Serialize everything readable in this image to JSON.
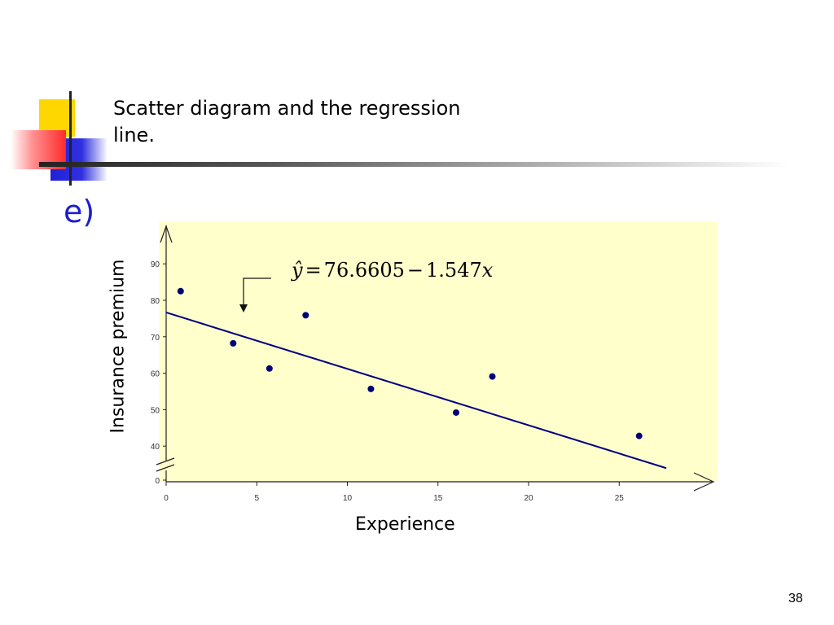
{
  "slide": {
    "title": "Scatter diagram and the regression line.",
    "part_label": "e)",
    "page_number": "38"
  },
  "colors": {
    "plot_background": "#ffffcc",
    "point": "#00007a",
    "regression_line": "#000080",
    "accent_blue": "#1c1cd6"
  },
  "chart_data": {
    "type": "scatter",
    "title": "",
    "xlabel": "Experience",
    "ylabel": "Insurance premium",
    "xlim": [
      0,
      30
    ],
    "ylim": [
      0,
      100
    ],
    "y_axis_break": "between 0 and 40",
    "x_ticks": [
      "0",
      "5",
      "10",
      "15",
      "20",
      "25"
    ],
    "y_ticks": [
      "0",
      "40",
      "50",
      "60",
      "70",
      "80",
      "90"
    ],
    "grid": false,
    "legend": "none",
    "points": [
      {
        "x": 0.8,
        "y": 82.5
      },
      {
        "x": 3.7,
        "y": 68.2
      },
      {
        "x": 5.7,
        "y": 61.3
      },
      {
        "x": 7.7,
        "y": 75.9
      },
      {
        "x": 11.3,
        "y": 55.7
      },
      {
        "x": 16.0,
        "y": 49.2
      },
      {
        "x": 18.0,
        "y": 59.1
      },
      {
        "x": 26.1,
        "y": 42.8
      }
    ],
    "regression": {
      "intercept": 76.6605,
      "slope": -1.547,
      "x_range": [
        0,
        27.6
      ]
    },
    "equation": {
      "lhs": "ŷ",
      "equals": "=",
      "constant": "76.6605",
      "operator": "−",
      "coefficient": "1.547",
      "variable": "x"
    }
  }
}
